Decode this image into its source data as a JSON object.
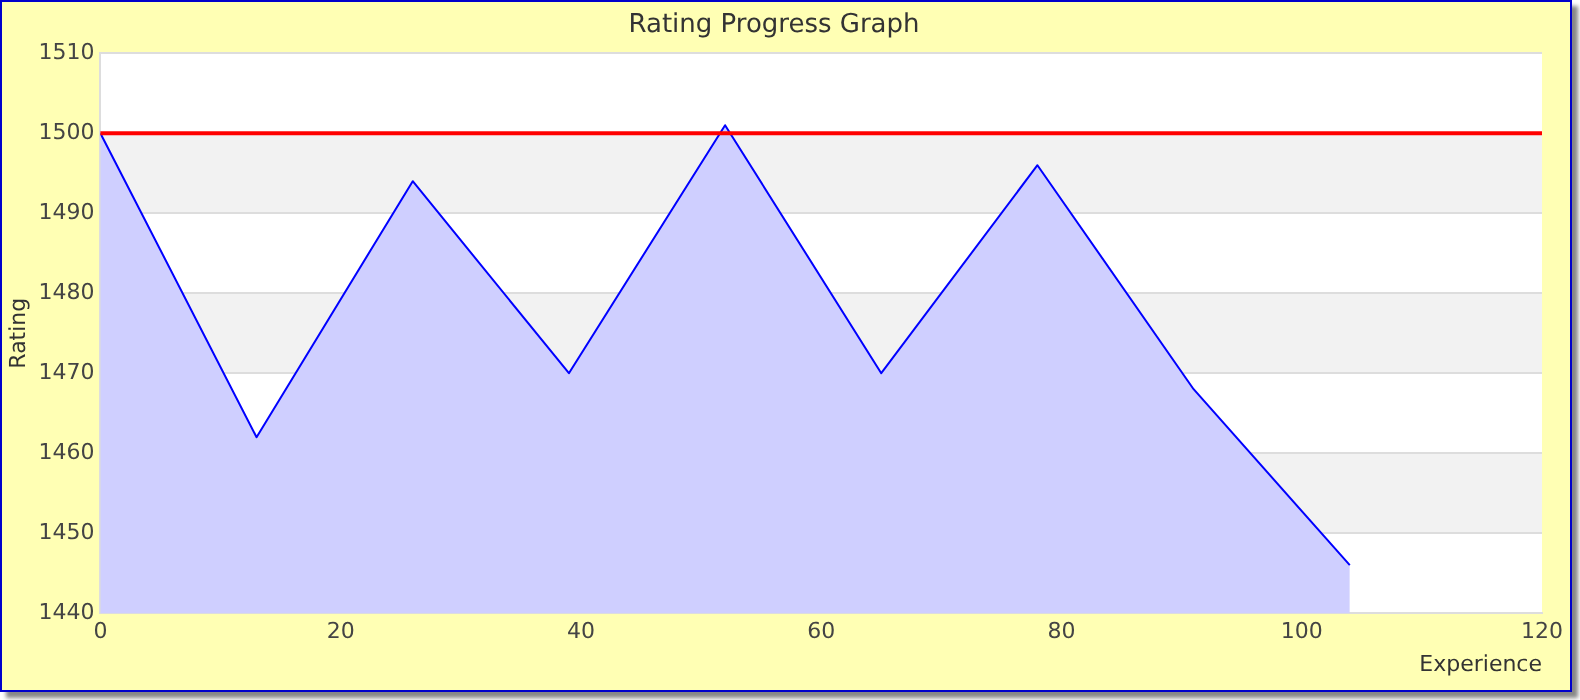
{
  "chart_data": {
    "type": "area",
    "title": "Rating Progress Graph",
    "xlabel": "Experience",
    "ylabel": "Rating",
    "x": [
      0,
      13,
      26,
      39,
      52,
      65,
      78,
      91,
      104
    ],
    "series": [
      {
        "color": "#0000ff",
        "values": [
          1500,
          1462,
          1494,
          1470,
          1501,
          1470,
          1496,
          1468,
          1446
        ]
      }
    ],
    "xlim": [
      0,
      120
    ],
    "xticks": [
      0,
      20,
      40,
      60,
      80,
      100,
      120
    ],
    "ylim": [
      1440,
      1510
    ],
    "yticks": [
      1440,
      1450,
      1460,
      1470,
      1480,
      1490,
      1500,
      1510
    ],
    "ref_lines": [
      {
        "axis": "y",
        "value": 1500,
        "color": "#ff0000"
      }
    ],
    "grid": "y",
    "legend": false,
    "marker": "none"
  }
}
